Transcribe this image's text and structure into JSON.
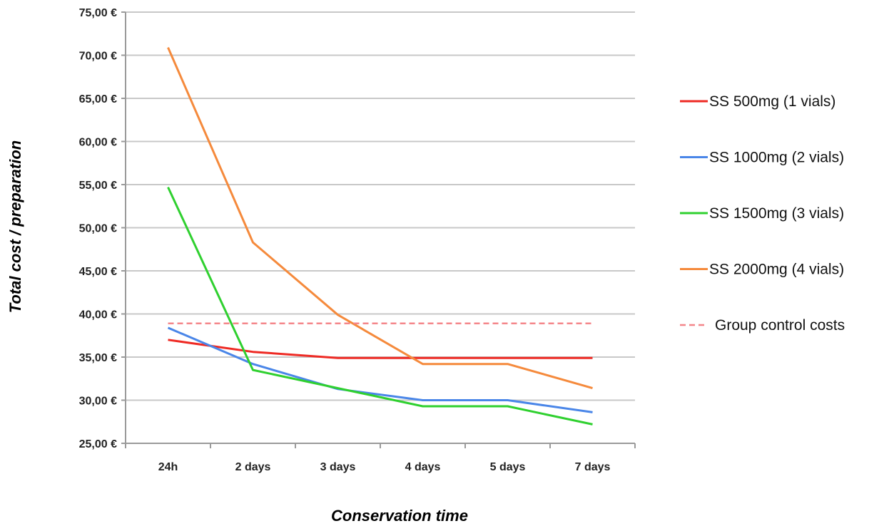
{
  "chart_data": {
    "type": "line",
    "xlabel": "Conservation time",
    "ylabel": "Total cost / preparation",
    "categories": [
      "24h",
      "2 days",
      "3 days",
      "4 days",
      "5 days",
      "7 days"
    ],
    "ylim": [
      25,
      75
    ],
    "yticks": [
      25,
      30,
      35,
      40,
      45,
      50,
      55,
      60,
      65,
      70,
      75
    ],
    "ytick_labels": [
      "25,00 €",
      "30,00 €",
      "35,00 €",
      "40,00 €",
      "45,00 €",
      "50,00 €",
      "55,00 €",
      "60,00 €",
      "65,00 €",
      "70,00 €",
      "75,00 €"
    ],
    "grid": true,
    "legend_position": "right",
    "series": [
      {
        "name": "SS 500mg (1 vials)",
        "color": "#ee2a24",
        "dashed": false,
        "values": [
          37.0,
          35.6,
          34.9,
          34.9,
          34.9,
          34.9
        ]
      },
      {
        "name": "SS 1000mg (2 vials)",
        "color": "#4a86e8",
        "dashed": false,
        "values": [
          38.4,
          34.2,
          31.3,
          30.0,
          30.0,
          28.6
        ]
      },
      {
        "name": "SS 1500mg (3 vials)",
        "color": "#2fd02f",
        "dashed": false,
        "values": [
          54.7,
          33.5,
          31.4,
          29.3,
          29.3,
          27.2
        ]
      },
      {
        "name": "SS 2000mg (4 vials)",
        "color": "#f58a3c",
        "dashed": false,
        "values": [
          70.9,
          48.3,
          39.9,
          34.2,
          34.2,
          31.4
        ]
      },
      {
        "name": "Group control costs",
        "color": "#f4868a",
        "dashed": true,
        "values": [
          38.9,
          38.9,
          38.9,
          38.9,
          38.9,
          38.9
        ]
      }
    ]
  }
}
